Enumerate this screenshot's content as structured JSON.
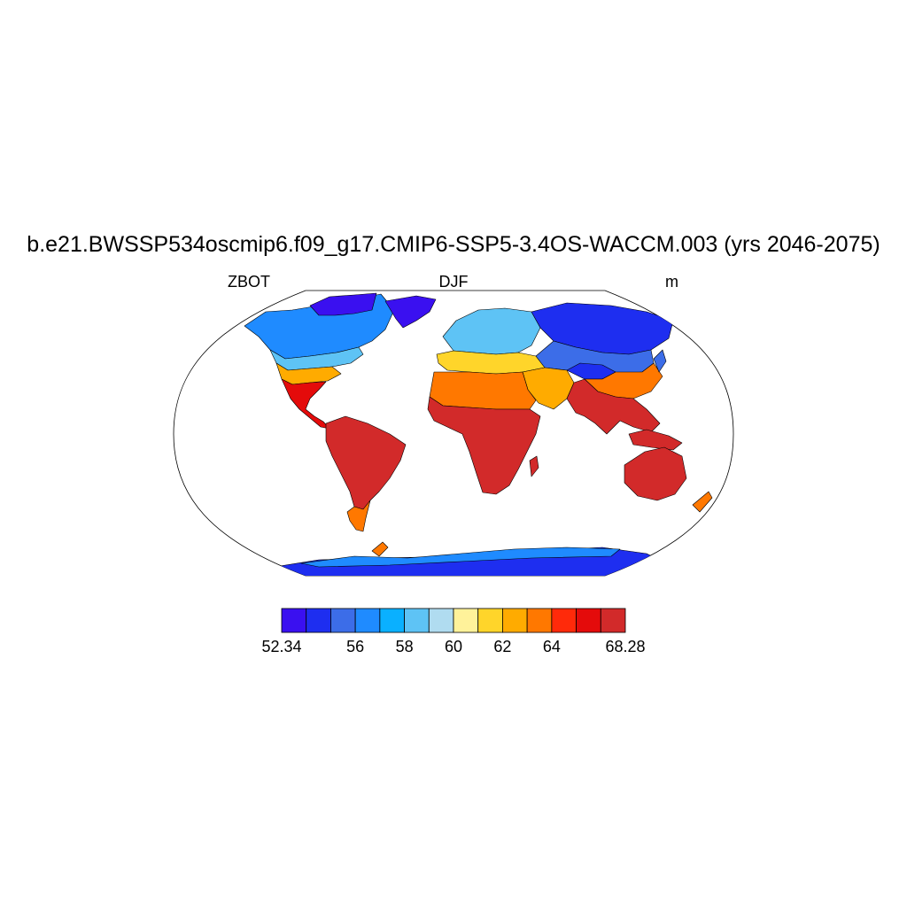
{
  "figure": {
    "title": "b.e21.BWSSP534oscmip6.f09_g17.CMIP6-SSP5-3.4OS-WACCM.003 (yrs 2046-2075)",
    "left_label": "ZBOT",
    "center_label": "DJF",
    "right_label": "m"
  },
  "colorbar": {
    "colors": [
      "#3a10f0",
      "#1e2ef0",
      "#3c6de8",
      "#1f8bff",
      "#0ab0ff",
      "#5ec3f5",
      "#b0dcf0",
      "#fff29a",
      "#ffd52a",
      "#ffab00",
      "#ff7800",
      "#ff2a0a",
      "#e40b0b",
      "#d22a2a"
    ],
    "labels": [
      {
        "text": "52.34",
        "index": 0
      },
      {
        "text": "56",
        "index": 3
      },
      {
        "text": "58",
        "index": 5
      },
      {
        "text": "60",
        "index": 7
      },
      {
        "text": "62",
        "index": 9
      },
      {
        "text": "64",
        "index": 11
      },
      {
        "text": "68.28",
        "index": 14
      }
    ]
  },
  "map": {
    "projection": "Robinson",
    "ocean_color": "#ffffff",
    "coastline_color": "#000000",
    "regions": {
      "arctic_canada": "#3a10f0",
      "greenland": "#3a10f0",
      "north_america_north": "#1f8bff",
      "north_america_mid": "#5ec3f5",
      "north_america_south": "#ffab00",
      "mexico_central": "#e40b0b",
      "south_america": "#d22a2a",
      "patagonia": "#ff7800",
      "europe_north": "#5ec3f5",
      "europe_south": "#ffd52a",
      "siberia": "#1e2ef0",
      "central_asia": "#3c6de8",
      "tibet": "#1e2ef0",
      "china": "#ff7800",
      "north_africa": "#ff7800",
      "africa": "#d22a2a",
      "middle_east": "#ffab00",
      "india_se_asia": "#d22a2a",
      "australia": "#d22a2a",
      "new_zealand": "#ff7800",
      "antarctica": "#1e2ef0",
      "antarctica_coast": "#1f8bff"
    }
  }
}
